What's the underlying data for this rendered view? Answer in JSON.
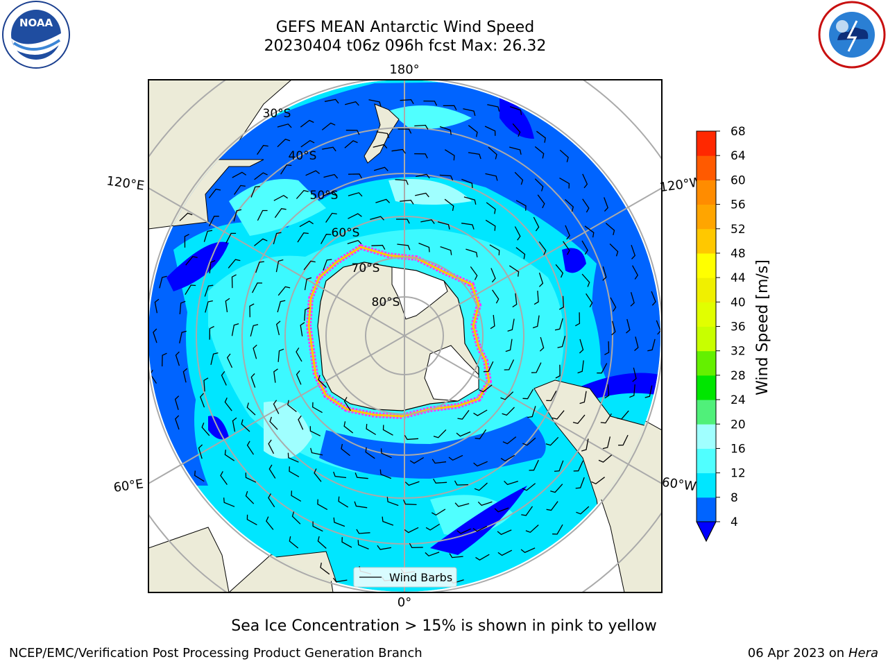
{
  "header": {
    "title_line1": "GEFS MEAN Antarctic Wind Speed",
    "title_line2": "20230404 t06z 096h fcst   Max: 26.32"
  },
  "logos": {
    "left": "noaa-logo",
    "right": "national-weather-service-logo",
    "left_text": "NOAA",
    "left_ring_text": "NATIONAL OCEANIC AND ATMOSPHERIC ADMINISTRATION · U.S. DEPARTMENT OF COMMERCE",
    "right_ring_text": "NATIONAL WEATHER SERVICE"
  },
  "map": {
    "projection": "south-polar-stereographic",
    "longitude_labels": {
      "top": "180°",
      "bottom": "0°",
      "upper_left": "120°E",
      "upper_right": "120°W",
      "lower_left": "60°E",
      "lower_right": "60°W"
    },
    "latitude_labels": [
      "30°S",
      "40°S",
      "50°S",
      "60°S",
      "70°S",
      "80°S"
    ],
    "legend_label": "Wind Barbs",
    "colors": {
      "land": "#ecebd8",
      "ice_free_land": "#ffffff",
      "sea_ice_edge": "#ff33ff"
    }
  },
  "colorbar": {
    "label": "Wind Speed [m/s]",
    "ticks": [
      "4",
      "8",
      "12",
      "16",
      "20",
      "24",
      "28",
      "32",
      "36",
      "40",
      "44",
      "48",
      "52",
      "56",
      "60",
      "64",
      "68"
    ],
    "colors": [
      "#0064ff",
      "#00e6ff",
      "#50ffff",
      "#a0ffff",
      "#50f07a",
      "#00e600",
      "#64f000",
      "#c8ff00",
      "#e1ff00",
      "#f0f000",
      "#ffff00",
      "#ffc800",
      "#ffa500",
      "#ff8c00",
      "#ff5a00",
      "#ff2800",
      "#ff0000"
    ],
    "under_color": "#0000ff"
  },
  "caption": "Sea Ice Concentration > 15% is shown in pink to yellow",
  "footer": {
    "left": "NCEP/EMC/Verification Post Processing Product Generation Branch",
    "date": "06 Apr 2023 on ",
    "machine": "Hera"
  }
}
